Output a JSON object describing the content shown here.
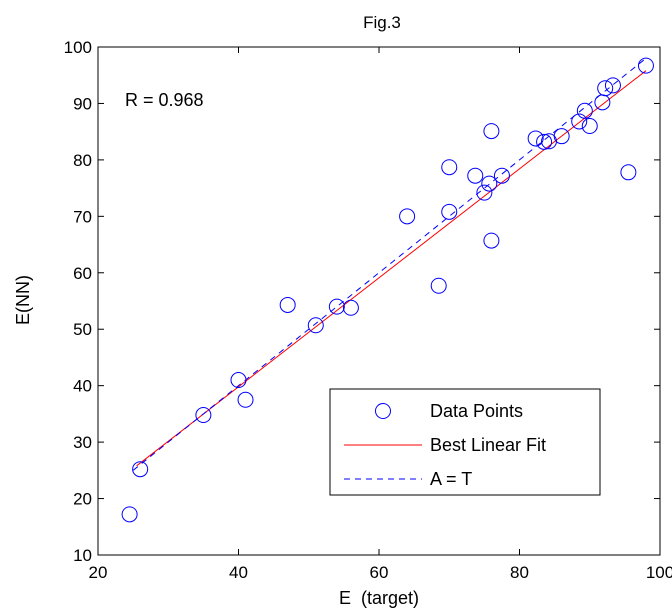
{
  "chart_data": {
    "type": "scatter",
    "title": "Fig.3",
    "xlabel": "E  (target)",
    "ylabel": "E(NN)",
    "xlim": [
      20,
      100
    ],
    "ylim": [
      10,
      100
    ],
    "xticks": [
      20,
      40,
      60,
      80,
      100
    ],
    "yticks": [
      10,
      20,
      30,
      40,
      50,
      60,
      70,
      80,
      90,
      100
    ],
    "grid": false,
    "annotation": "R = 0.968",
    "legend": {
      "placement": "bottom-right",
      "entries": [
        "Data Points",
        "Best Linear Fit",
        "A = T"
      ]
    },
    "series": [
      {
        "name": "Data Points",
        "kind": "scatter",
        "marker": "circle",
        "color": "#0000ff",
        "points": [
          [
            24.5,
            17.2
          ],
          [
            26,
            25.2
          ],
          [
            35,
            34.8
          ],
          [
            40,
            41
          ],
          [
            41,
            37.5
          ],
          [
            47,
            54.3
          ],
          [
            51,
            50.7
          ],
          [
            54,
            54
          ],
          [
            56,
            53.8
          ],
          [
            64,
            70
          ],
          [
            68.5,
            57.7
          ],
          [
            70,
            78.7
          ],
          [
            70,
            70.8
          ],
          [
            73.7,
            77.2
          ],
          [
            75,
            74.2
          ],
          [
            75.7,
            75.8
          ],
          [
            76,
            65.7
          ],
          [
            76,
            85.1
          ],
          [
            77.5,
            77.2
          ],
          [
            82.3,
            83.8
          ],
          [
            83.5,
            83.2
          ],
          [
            84.2,
            83.3
          ],
          [
            86,
            84.2
          ],
          [
            88.5,
            86.8
          ],
          [
            89.3,
            88.7
          ],
          [
            90,
            86
          ],
          [
            91.8,
            90.2
          ],
          [
            92.2,
            92.7
          ],
          [
            93.3,
            93.2
          ],
          [
            95.5,
            77.8
          ],
          [
            98,
            96.7
          ]
        ]
      },
      {
        "name": "Best Linear Fit",
        "kind": "line",
        "color": "#ff0000",
        "dash": "solid",
        "points": [
          [
            25.5,
            25.8
          ],
          [
            98,
            95.8
          ]
        ]
      },
      {
        "name": "A = T",
        "kind": "line",
        "color": "#0000ff",
        "dash": "dashed",
        "points": [
          [
            25,
            25
          ],
          [
            98,
            98
          ]
        ]
      }
    ]
  }
}
